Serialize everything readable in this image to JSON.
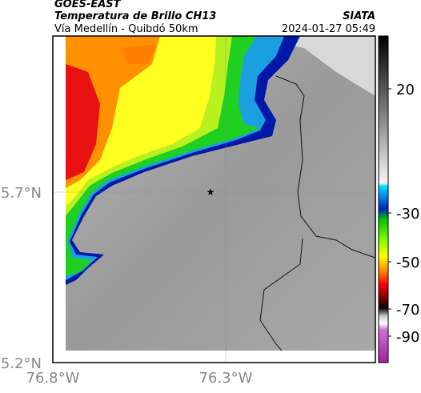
{
  "header": {
    "satellite": "GOES-EAST",
    "product": "Temperatura de Brillo CH13",
    "region": "Vía Medellín - Quibdó 50km",
    "source": "SIATA",
    "timestamp": "2024-01-27 05:49"
  },
  "axes": {
    "y_labels": [
      "5.7°N",
      "5.2°N"
    ],
    "x_labels": [
      "76.8°W",
      "76.3°W"
    ]
  },
  "colorbar": {
    "ticks": [
      "20",
      "-30",
      "-50",
      "-70",
      "-90"
    ]
  }
}
